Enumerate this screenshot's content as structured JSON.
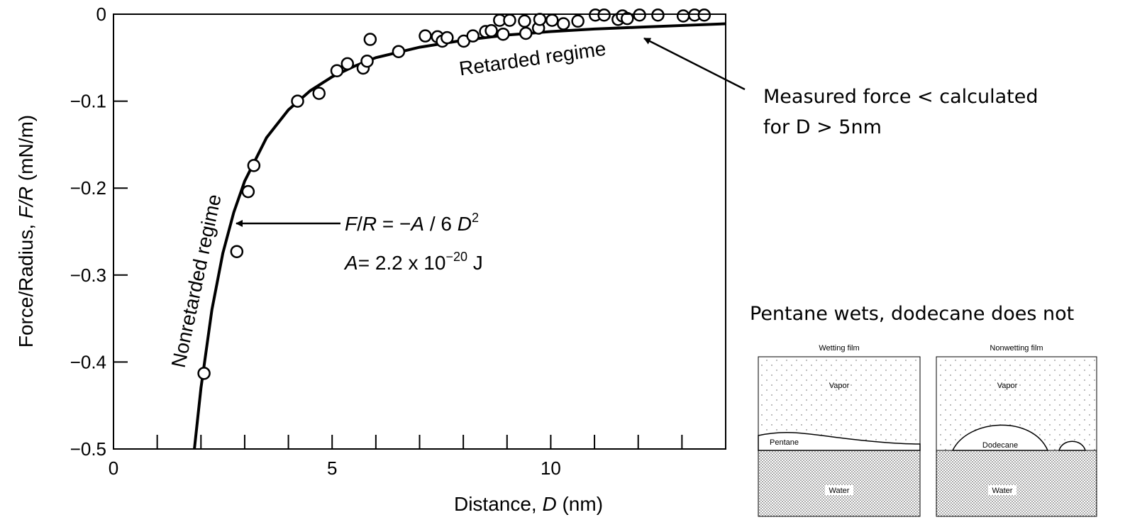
{
  "chart_data": {
    "type": "scatter",
    "x_label": [
      "Distance, ",
      "D",
      " (nm)"
    ],
    "y_label": [
      "Force/Radius, ",
      "F/R",
      " (mN/m)"
    ],
    "xlim": [
      0,
      14
    ],
    "ylim": [
      -0.5,
      0
    ],
    "xticks": [
      0,
      5,
      10
    ],
    "x_minor_ticks": [
      1,
      2,
      3,
      4,
      6,
      7,
      8,
      9,
      11,
      12,
      13
    ],
    "yticks": [
      0,
      {
        "value": -0.1,
        "label": "−0.1"
      },
      {
        "value": -0.2,
        "label": "−0.2"
      },
      {
        "value": -0.3,
        "label": "−0.3"
      },
      {
        "value": -0.4,
        "label": "−0.4"
      },
      {
        "value": -0.5,
        "label": "−0.5"
      }
    ],
    "series": [
      {
        "type": "scatter",
        "color": "#000000",
        "x": [
          2.07,
          2.82,
          3.08,
          3.21,
          4.21,
          4.7,
          5.11,
          5.35,
          5.71,
          5.8,
          5.87,
          6.52,
          7.13,
          7.41,
          7.52,
          7.63,
          8.01,
          8.22,
          8.51,
          8.64,
          8.83,
          8.91,
          9.06,
          9.4,
          9.43,
          9.72,
          9.75,
          10.03,
          10.29,
          10.62,
          11.02,
          11.22,
          11.54,
          11.64,
          11.75,
          12.03,
          12.45,
          13.03,
          13.29,
          13.51
        ],
        "values": [
          -0.413,
          -0.273,
          -0.204,
          -0.174,
          -0.1,
          -0.091,
          -0.065,
          -0.057,
          -0.062,
          -0.054,
          -0.029,
          -0.043,
          -0.025,
          -0.026,
          -0.031,
          -0.027,
          -0.031,
          -0.025,
          -0.02,
          -0.019,
          -0.007,
          -0.023,
          -0.007,
          -0.008,
          -0.022,
          -0.016,
          -0.006,
          -0.007,
          -0.011,
          -0.008,
          -0.001,
          -0.001,
          -0.006,
          -0.002,
          -0.005,
          -0.001,
          -0.001,
          -0.002,
          -0.001,
          -0.001
        ]
      },
      {
        "type": "line",
        "color": "#000000",
        "x": [
          1.85,
          2,
          2.25,
          2.5,
          2.75,
          3,
          3.5,
          4,
          4.5,
          5,
          5.5,
          6,
          7,
          8,
          9,
          10,
          11,
          12,
          13,
          14
        ],
        "values": [
          -0.5,
          -0.43,
          -0.34,
          -0.275,
          -0.228,
          -0.192,
          -0.142,
          -0.11,
          -0.088,
          -0.072,
          -0.06,
          -0.05,
          -0.038,
          -0.03,
          -0.024,
          -0.02,
          -0.017,
          -0.015,
          -0.013,
          -0.011
        ]
      }
    ],
    "annotations": {
      "retarded": "Retarded regime",
      "nonretarded": "Nonretarded regime",
      "formula": [
        "F",
        "/",
        "R",
        " = −",
        "A",
        " / 6 ",
        "D",
        "2"
      ],
      "hamaker": [
        "A",
        "= 2.2 x 10",
        "−20",
        " J"
      ],
      "measured": [
        "Measured force < calculated",
        "for D > 5nm"
      ]
    }
  },
  "side_panel": {
    "title": "Pentane wets, dodecane does not",
    "left": {
      "title": "Wetting film",
      "vapor": "Vapor",
      "liquid": "Pentane",
      "water": "Water"
    },
    "right": {
      "title": "Nonwetting film",
      "vapor": "Vapor",
      "liquid": "Dodecane",
      "water": "Water"
    }
  }
}
